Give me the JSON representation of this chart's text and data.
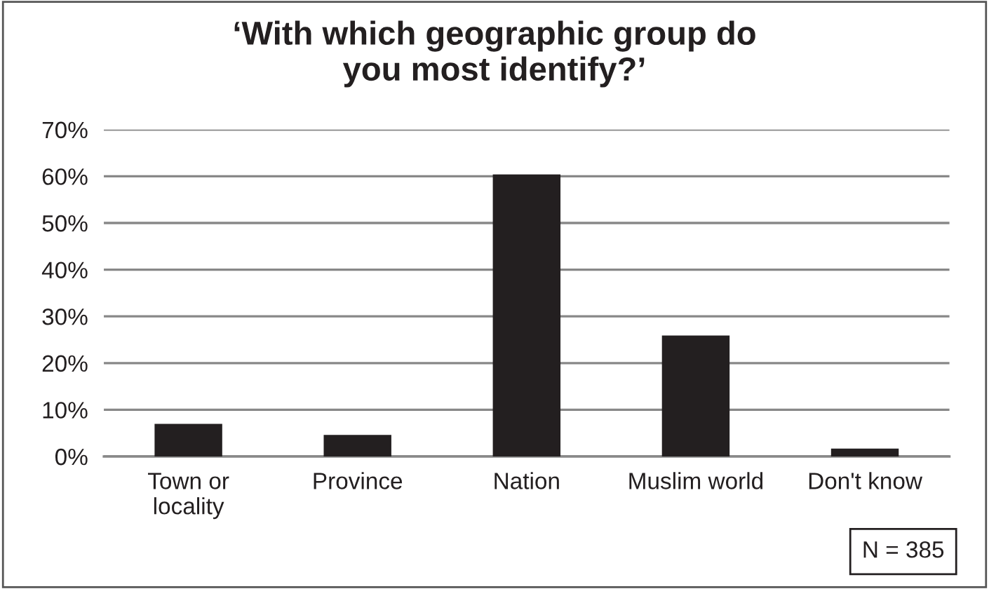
{
  "chart_data": {
    "type": "bar",
    "title": "‘With which geographic group do\nyou most identify?’",
    "categories": [
      "Town or\nlocality",
      "Province",
      "Nation",
      "Muslim world",
      "Don't know"
    ],
    "values": [
      7.0,
      4.6,
      60.4,
      25.9,
      1.7
    ],
    "color": "#231f20",
    "ylim": [
      0,
      70
    ],
    "yticks": [
      {
        "value": 0,
        "label": "0%"
      },
      {
        "value": 10,
        "label": "10%"
      },
      {
        "value": 20,
        "label": "20%"
      },
      {
        "value": 30,
        "label": "30%"
      },
      {
        "value": 40,
        "label": "40%"
      },
      {
        "value": 50,
        "label": "50%"
      },
      {
        "value": 60,
        "label": "60%"
      },
      {
        "value": 70,
        "label": "70%"
      }
    ],
    "grid": "y",
    "legend": false,
    "annotations": [
      "N = 385"
    ]
  }
}
